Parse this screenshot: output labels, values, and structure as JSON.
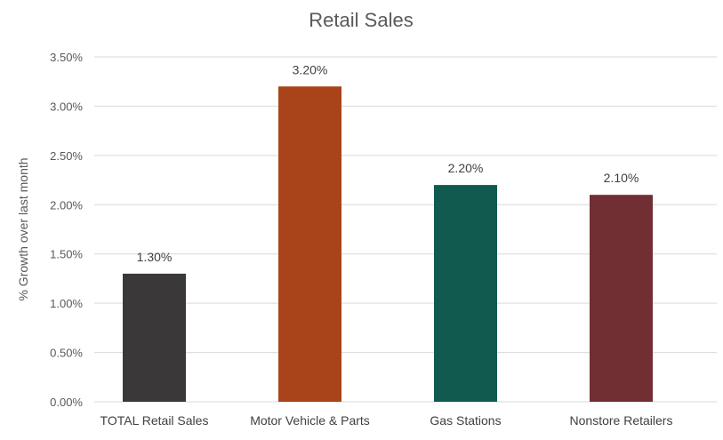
{
  "chart_data": {
    "type": "bar",
    "title": "Retail Sales",
    "xlabel": "",
    "ylabel": "% Growth over last month",
    "categories": [
      "TOTAL Retail Sales",
      "Motor Vehicle & Parts",
      "Gas Stations",
      "Nonstore Retailers"
    ],
    "values": [
      1.3,
      3.2,
      2.2,
      2.1
    ],
    "data_labels": [
      "1.30%",
      "3.20%",
      "2.20%",
      "2.10%"
    ],
    "colors": [
      "#3a3838",
      "#a9441a",
      "#115a50",
      "#722f33"
    ],
    "ylim": [
      0,
      3.5
    ],
    "yticks": [
      0,
      0.5,
      1.0,
      1.5,
      2.0,
      2.5,
      3.0,
      3.5
    ],
    "ytick_labels": [
      "0.00%",
      "0.50%",
      "1.00%",
      "1.50%",
      "2.00%",
      "2.50%",
      "3.00%",
      "3.50%"
    ],
    "grid": true,
    "legend": "none"
  }
}
